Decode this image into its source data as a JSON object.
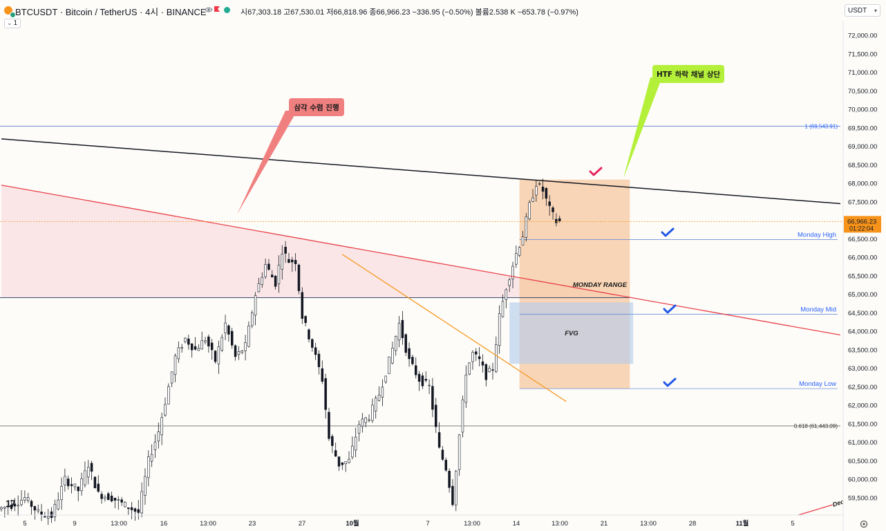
{
  "header": {
    "title": "BTCUSDT · Bitcoin / TetherUS · 4시 · BINANCE",
    "ohlc": {
      "open_label": "시",
      "open": "67,303.18",
      "high_label": "고",
      "high": "67,530.01",
      "low_label": "저",
      "low": "66,818.96",
      "close_label": "종",
      "close": "66,966.23",
      "change": "−336.95 (−0.50%)",
      "volume_label": "볼륨",
      "volume": "2.538 K",
      "volume_change": "−653.78 (−0.97%)"
    },
    "interval_count": "1",
    "currency": "USDT"
  },
  "colors": {
    "up": "#131722",
    "down": "#131722",
    "triangle_zone": "#f9d7dc",
    "monday_box": "#f5c8a0",
    "fvg_box": "#b7cdec",
    "red_line": "#e8404a",
    "black_line": "#131722",
    "orange_line": "#f59a23",
    "blue_line": "#2962ff",
    "check_blue": "#2158e8",
    "check_red": "#e8245e",
    "callout_red": "#f08080",
    "callout_green": "#b4f03a",
    "price_tag": "#f7931a"
  },
  "chart_data": {
    "type": "candlestick",
    "symbol": "BTCUSDT",
    "ylim": [
      59000,
      72500
    ],
    "y_ticks": [
      {
        "value": 59500,
        "label": "59,500.00"
      },
      {
        "value": 60000,
        "label": "60,000.00"
      },
      {
        "value": 60500,
        "label": "60,500.00"
      },
      {
        "value": 61000,
        "label": "61,000.00"
      },
      {
        "value": 61500,
        "label": "61,500.00"
      },
      {
        "value": 62000,
        "label": "62,000.00"
      },
      {
        "value": 62500,
        "label": "62,500.00"
      },
      {
        "value": 63000,
        "label": "63,000.00"
      },
      {
        "value": 63500,
        "label": "63,500.00"
      },
      {
        "value": 64000,
        "label": "64,000.00"
      },
      {
        "value": 64500,
        "label": "64,500.00"
      },
      {
        "value": 65000,
        "label": "65,000.00"
      },
      {
        "value": 65500,
        "label": "65,500.00"
      },
      {
        "value": 66000,
        "label": "66,000.00"
      },
      {
        "value": 66500,
        "label": "66,500.00"
      },
      {
        "value": 67000,
        "label": "67,000.00"
      },
      {
        "value": 67500,
        "label": "67,500.00"
      },
      {
        "value": 68000,
        "label": "68,000.00"
      },
      {
        "value": 68500,
        "label": "68,500.00"
      },
      {
        "value": 69000,
        "label": "69,000.00"
      },
      {
        "value": 69500,
        "label": "69,500.00"
      },
      {
        "value": 70000,
        "label": "70,000.00"
      },
      {
        "value": 70500,
        "label": "70,500.00"
      },
      {
        "value": 71000,
        "label": "71,000.00"
      },
      {
        "value": 71500,
        "label": "71,500.00"
      },
      {
        "value": 72000,
        "label": "72,000.00"
      }
    ],
    "x_ticks": [
      "5",
      "9",
      "13:00",
      "16",
      "13:00",
      "23",
      "27",
      "10월",
      "7",
      "13:00",
      "14",
      "13:00",
      "21",
      "13:00",
      "28",
      "11월",
      "5"
    ],
    "bar_count": 204,
    "bar_index_range": [
      0,
      204
    ],
    "price_path": [
      [
        0,
        59200
      ],
      [
        4,
        59300
      ],
      [
        8,
        59500
      ],
      [
        12,
        59100
      ],
      [
        16,
        59000
      ],
      [
        20,
        60000
      ],
      [
        24,
        59700
      ],
      [
        27,
        60400
      ],
      [
        30,
        59600
      ],
      [
        34,
        59500
      ],
      [
        38,
        59300
      ],
      [
        42,
        59100
      ],
      [
        45,
        60500
      ],
      [
        48,
        61300
      ],
      [
        50,
        62100
      ],
      [
        53,
        63300
      ],
      [
        56,
        63800
      ],
      [
        59,
        63500
      ],
      [
        62,
        63800
      ],
      [
        65,
        63200
      ],
      [
        68,
        64200
      ],
      [
        71,
        63300
      ],
      [
        74,
        63600
      ],
      [
        77,
        65000
      ],
      [
        80,
        65800
      ],
      [
        83,
        65300
      ],
      [
        85,
        66200
      ],
      [
        87,
        65900
      ],
      [
        89,
        65900
      ],
      [
        91,
        64400
      ],
      [
        94,
        63600
      ],
      [
        97,
        62700
      ],
      [
        99,
        61100
      ],
      [
        102,
        60400
      ],
      [
        105,
        60500
      ],
      [
        108,
        61500
      ],
      [
        111,
        61700
      ],
      [
        114,
        62300
      ],
      [
        117,
        63200
      ],
      [
        120,
        64200
      ],
      [
        123,
        63200
      ],
      [
        126,
        62700
      ],
      [
        129,
        62500
      ],
      [
        132,
        60800
      ],
      [
        134,
        60300
      ],
      [
        136,
        59400
      ],
      [
        138,
        61200
      ],
      [
        140,
        62900
      ],
      [
        142,
        63400
      ],
      [
        144,
        63200
      ],
      [
        146,
        62800
      ],
      [
        148,
        63000
      ],
      [
        150,
        64400
      ],
      [
        152,
        65200
      ],
      [
        155,
        66100
      ],
      [
        157,
        66600
      ],
      [
        159,
        67400
      ],
      [
        161,
        68000
      ],
      [
        163,
        67800
      ],
      [
        165,
        67300
      ],
      [
        167,
        66966
      ]
    ],
    "last_price": {
      "value": 66966.23,
      "label": "66,966.23",
      "countdown": "01:22:04"
    },
    "levels": [
      {
        "name": "fib-1",
        "value": 69543.91,
        "label": "1 (69,543.91)"
      },
      {
        "name": "monday-high",
        "value": 66480,
        "label": "Monday High"
      },
      {
        "name": "monday-mid",
        "value": 64460,
        "label": "Monday Mid"
      },
      {
        "name": "monday-low",
        "value": 62450,
        "label": "Monday Low"
      },
      {
        "name": "fib-0618",
        "value": 61443.09,
        "label": "0.618 (61,443.09)"
      },
      {
        "name": "horizontal-support",
        "value": 64910
      }
    ],
    "zones": [
      {
        "name": "monday-range",
        "label": "MONDAY RANGE",
        "x_from": 155,
        "x_to": 188,
        "y_from": 62450,
        "y_to": 68100
      },
      {
        "name": "fvg",
        "label": "FVG",
        "x_from": 152,
        "x_to": 189,
        "y_from": 63120,
        "y_to": 64780
      }
    ],
    "trendlines": [
      {
        "name": "htf-channel-top",
        "from": [
          0,
          69200
        ],
        "to": [
          251,
          67450
        ]
      },
      {
        "name": "triangle-upper",
        "from": [
          0,
          67950
        ],
        "to": [
          251,
          63900
        ]
      },
      {
        "name": "descending-orange",
        "from": [
          102,
          66080
        ],
        "to": [
          169,
          62100
        ]
      }
    ],
    "annotations": [
      {
        "name": "callout-triangle",
        "text": "삼각 수렴 진행"
      },
      {
        "name": "callout-htf",
        "text": "HTF 하락 채널 상단"
      }
    ],
    "future_label": "Dec"
  }
}
